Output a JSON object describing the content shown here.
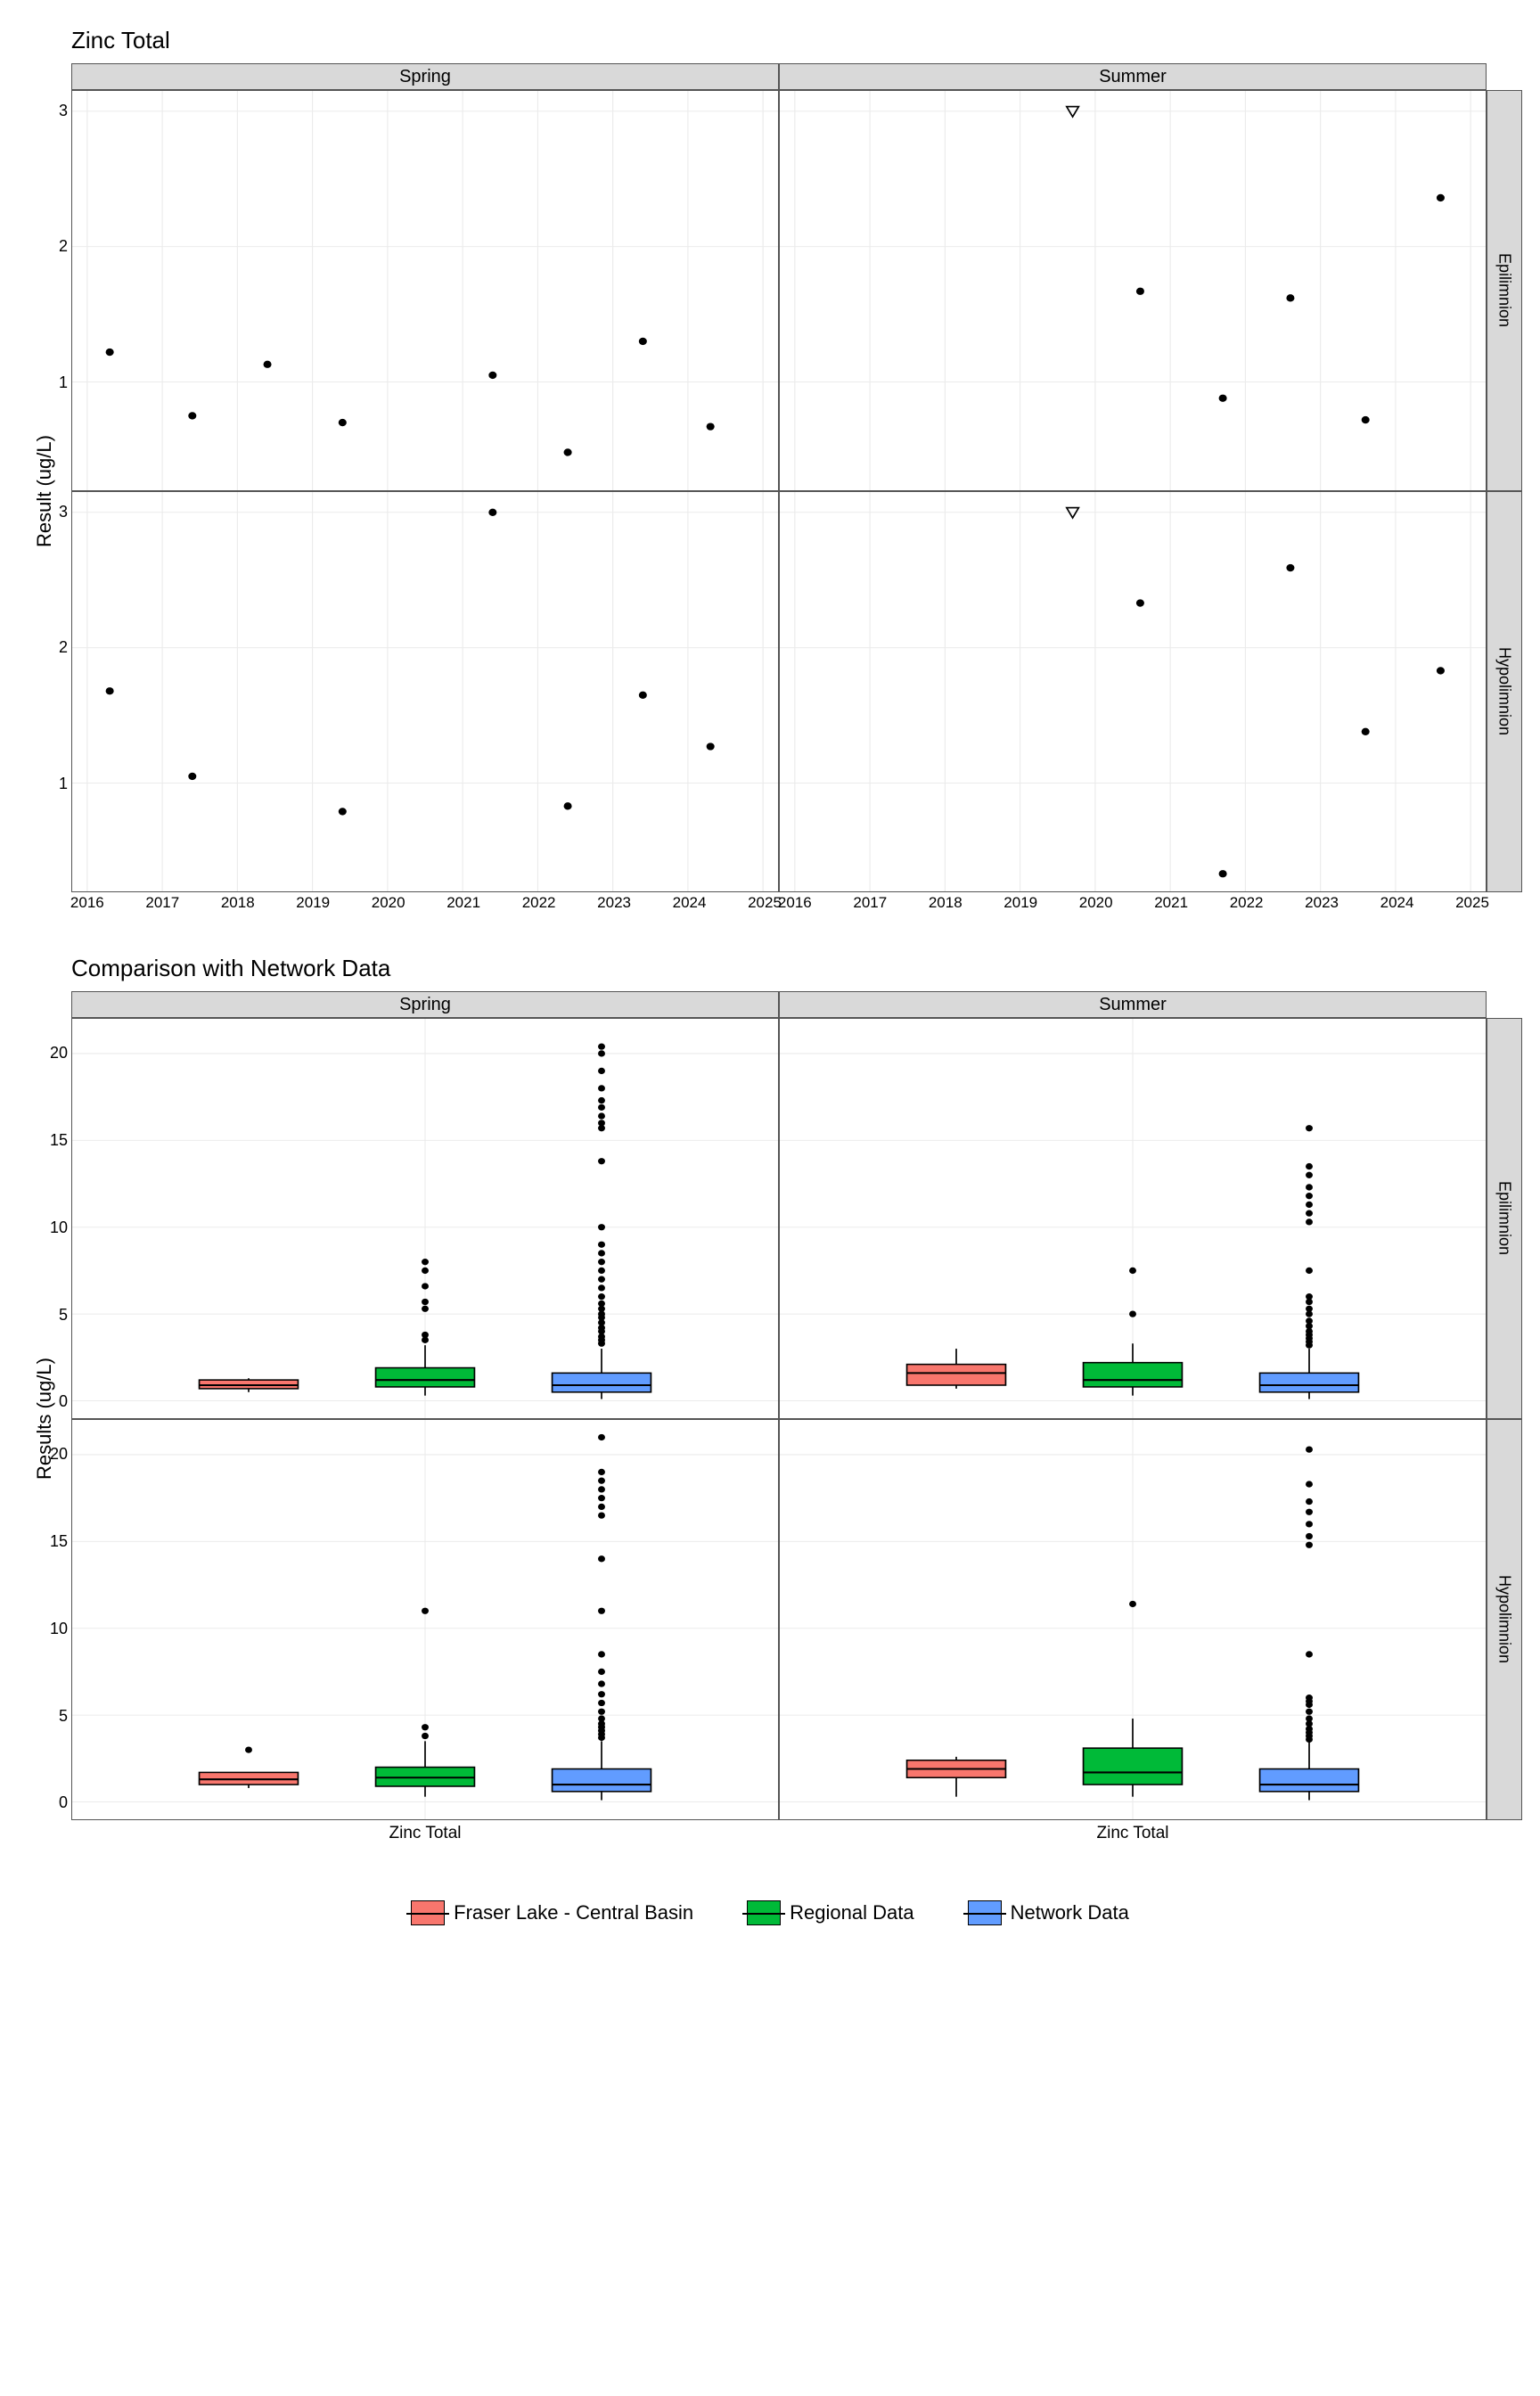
{
  "titles": {
    "top": "Zinc Total",
    "bottom": "Comparison with Network Data"
  },
  "axis_labels": {
    "top_y": "Result (ug/L)",
    "bot_y": "Results (ug/L)"
  },
  "strips": {
    "cols": [
      "Spring",
      "Summer"
    ],
    "rows": [
      "Epilimnion",
      "Hypolimnion"
    ]
  },
  "colors": {
    "fraser": "#f8766d",
    "regional": "#00ba38",
    "network": "#619cff",
    "panel_bg": "#ffffff",
    "grid": "#ebebeb",
    "strip_bg": "#d9d9d9"
  },
  "legend": [
    {
      "label": "Fraser Lake - Central Basin",
      "color": "#f8766d"
    },
    {
      "label": "Regional Data",
      "color": "#00ba38"
    },
    {
      "label": "Network Data",
      "color": "#619cff"
    }
  ],
  "top": {
    "xlim": [
      2015.8,
      2025.2
    ],
    "ylim": [
      0.2,
      3.15
    ],
    "xticks": [
      2016,
      2017,
      2018,
      2019,
      2020,
      2021,
      2022,
      2023,
      2024,
      2025
    ],
    "yticks": [
      1,
      2,
      3
    ],
    "panels": {
      "spring_epi": {
        "points": [
          [
            2016.3,
            1.22
          ],
          [
            2017.4,
            0.75
          ],
          [
            2018.4,
            1.13
          ],
          [
            2019.4,
            0.7
          ],
          [
            2021.4,
            1.05
          ],
          [
            2022.4,
            0.48
          ],
          [
            2023.4,
            1.3
          ],
          [
            2024.3,
            0.67
          ]
        ],
        "triangles": []
      },
      "summer_epi": {
        "points": [
          [
            2020.6,
            1.67
          ],
          [
            2021.7,
            0.88
          ],
          [
            2022.6,
            1.62
          ],
          [
            2023.6,
            0.72
          ],
          [
            2024.6,
            2.36
          ]
        ],
        "triangles": [
          [
            2019.7,
            3.0
          ]
        ]
      },
      "spring_hypo": {
        "points": [
          [
            2016.3,
            1.68
          ],
          [
            2017.4,
            1.05
          ],
          [
            2019.4,
            0.79
          ],
          [
            2021.4,
            3.0
          ],
          [
            2022.4,
            0.83
          ],
          [
            2023.4,
            1.65
          ],
          [
            2024.3,
            1.27
          ]
        ],
        "triangles": []
      },
      "summer_hypo": {
        "points": [
          [
            2020.6,
            2.33
          ],
          [
            2021.7,
            0.33
          ],
          [
            2022.6,
            2.59
          ],
          [
            2023.6,
            1.38
          ],
          [
            2024.6,
            1.83
          ]
        ],
        "triangles": [
          [
            2019.7,
            3.0
          ]
        ]
      }
    }
  },
  "bot": {
    "ylim": [
      -1,
      22
    ],
    "yticks": [
      0,
      5,
      10,
      15,
      20
    ],
    "xlabel": "Zinc Total",
    "box_xpos": {
      "fraser": 0.25,
      "regional": 0.5,
      "network": 0.75
    },
    "box_width": 0.14,
    "panels": {
      "spring_epi": {
        "boxes": {
          "fraser": {
            "min": 0.5,
            "q1": 0.7,
            "med": 0.9,
            "q3": 1.2,
            "max": 1.3,
            "out": []
          },
          "regional": {
            "min": 0.3,
            "q1": 0.8,
            "med": 1.2,
            "q3": 1.9,
            "max": 3.2,
            "out": [
              3.5,
              3.8,
              5.3,
              5.7,
              6.6,
              7.5,
              8.0
            ]
          },
          "network": {
            "min": 0.1,
            "q1": 0.5,
            "med": 0.9,
            "q3": 1.6,
            "max": 3.0,
            "out": [
              3.3,
              3.5,
              3.7,
              4.0,
              4.2,
              4.5,
              4.8,
              5.0,
              5.3,
              5.6,
              6.0,
              6.5,
              7.0,
              7.5,
              8.0,
              8.5,
              9.0,
              10.0,
              13.8,
              15.7,
              16.0,
              16.4,
              16.9,
              17.3,
              18.0,
              19.0,
              20.0,
              20.4
            ]
          }
        }
      },
      "summer_epi": {
        "boxes": {
          "fraser": {
            "min": 0.7,
            "q1": 0.9,
            "med": 1.6,
            "q3": 2.1,
            "max": 3.0,
            "out": []
          },
          "regional": {
            "min": 0.3,
            "q1": 0.8,
            "med": 1.2,
            "q3": 2.2,
            "max": 3.3,
            "out": [
              5.0,
              7.5
            ]
          },
          "network": {
            "min": 0.1,
            "q1": 0.5,
            "med": 0.9,
            "q3": 1.6,
            "max": 3.0,
            "out": [
              3.2,
              3.4,
              3.6,
              3.8,
              4.0,
              4.3,
              4.6,
              5.0,
              5.3,
              5.7,
              6.0,
              7.5,
              10.3,
              10.8,
              11.3,
              11.8,
              12.3,
              13.0,
              13.5,
              15.7
            ]
          }
        }
      },
      "spring_hypo": {
        "boxes": {
          "fraser": {
            "min": 0.8,
            "q1": 1.0,
            "med": 1.3,
            "q3": 1.7,
            "max": 1.7,
            "out": [
              3.0
            ]
          },
          "regional": {
            "min": 0.3,
            "q1": 0.9,
            "med": 1.4,
            "q3": 2.0,
            "max": 3.5,
            "out": [
              3.8,
              4.3,
              11.0
            ]
          },
          "network": {
            "min": 0.1,
            "q1": 0.6,
            "med": 1.0,
            "q3": 1.9,
            "max": 3.5,
            "out": [
              3.7,
              3.9,
              4.1,
              4.3,
              4.5,
              4.8,
              5.2,
              5.7,
              6.2,
              6.8,
              7.5,
              8.5,
              11.0,
              14.0,
              16.5,
              17.0,
              17.5,
              18.0,
              18.5,
              19.0,
              21.0
            ]
          }
        }
      },
      "summer_hypo": {
        "boxes": {
          "fraser": {
            "min": 0.3,
            "q1": 1.4,
            "med": 1.9,
            "q3": 2.4,
            "max": 2.6,
            "out": []
          },
          "regional": {
            "min": 0.3,
            "q1": 1.0,
            "med": 1.7,
            "q3": 3.1,
            "max": 4.8,
            "out": [
              11.4
            ]
          },
          "network": {
            "min": 0.1,
            "q1": 0.6,
            "med": 1.0,
            "q3": 1.9,
            "max": 3.5,
            "out": [
              3.6,
              3.8,
              4.0,
              4.2,
              4.5,
              4.8,
              5.2,
              5.6,
              5.8,
              6.0,
              8.5,
              14.8,
              15.3,
              16.0,
              16.7,
              17.3,
              18.3,
              20.3
            ]
          }
        }
      }
    }
  }
}
